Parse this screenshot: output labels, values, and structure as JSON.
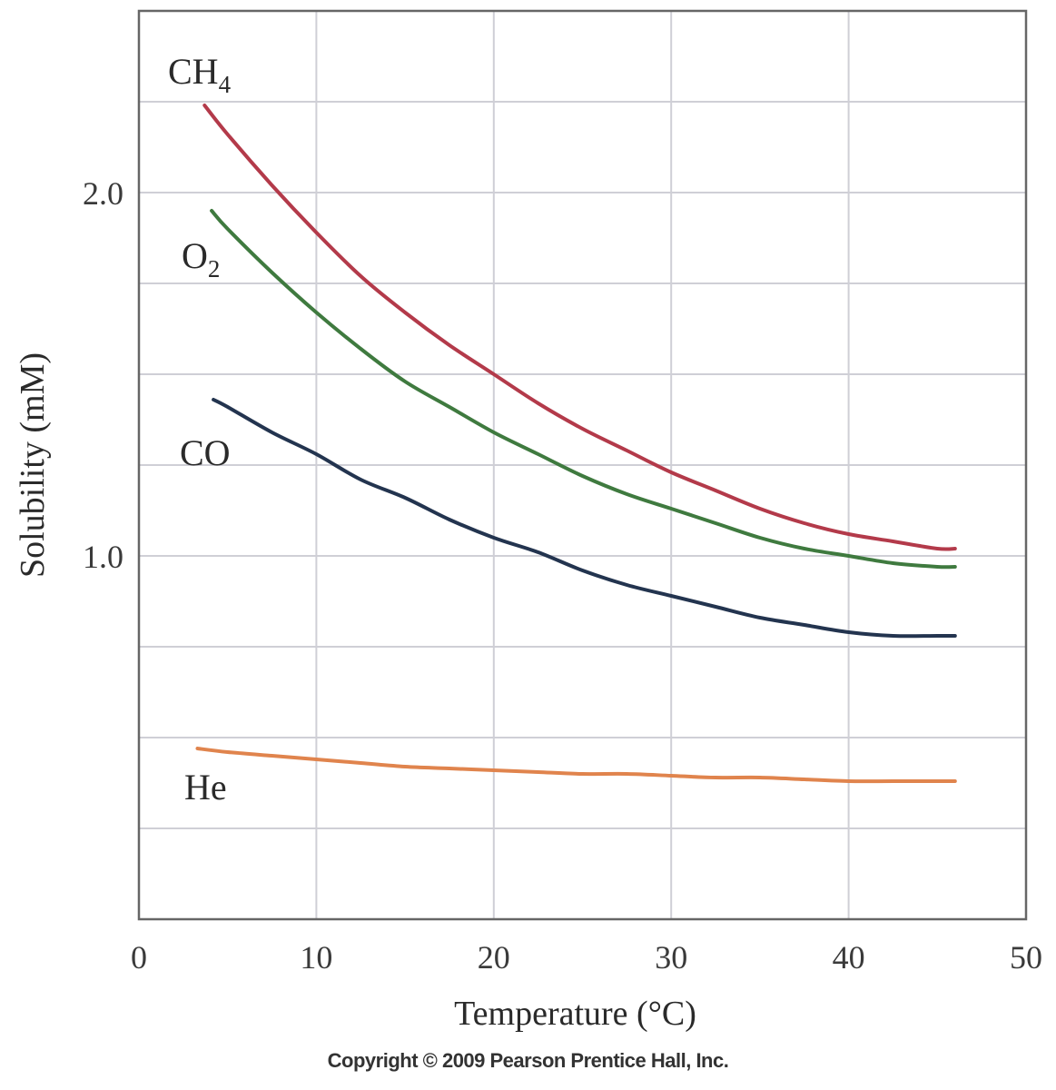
{
  "chart_data": {
    "type": "line",
    "title": "",
    "xlabel": "Temperature (°C)",
    "ylabel": "Solubility (mM)",
    "xlim": [
      0,
      50
    ],
    "ylim": [
      0,
      2.5
    ],
    "x_ticks": [
      0,
      10,
      20,
      30,
      40,
      50
    ],
    "x_tick_labels": [
      "0",
      "10",
      "20",
      "30",
      "40",
      "50"
    ],
    "y_ticks": [
      1.0,
      2.0
    ],
    "y_tick_labels": [
      "1.0",
      "2.0"
    ],
    "grid": true,
    "grid_x_step": 10,
    "grid_y_step": 0.25,
    "series": [
      {
        "name": "CH4",
        "label_base": "CH",
        "label_sub": "4",
        "color": "#b33a4a",
        "x": [
          3.7,
          5,
          7.5,
          10,
          12.5,
          15,
          17.5,
          20,
          22.5,
          25,
          27.5,
          30,
          32.5,
          35,
          37.5,
          40,
          42.5,
          45,
          46
        ],
        "y": [
          2.24,
          2.16,
          2.02,
          1.89,
          1.77,
          1.67,
          1.58,
          1.5,
          1.42,
          1.35,
          1.29,
          1.23,
          1.18,
          1.13,
          1.09,
          1.06,
          1.04,
          1.02,
          1.02
        ]
      },
      {
        "name": "O2",
        "label_base": "O",
        "label_sub": "2",
        "color": "#3f7a3f",
        "x": [
          4.1,
          5,
          7.5,
          10,
          12.5,
          15,
          17.5,
          20,
          22.5,
          25,
          27.5,
          30,
          32.5,
          35,
          37.5,
          40,
          42.5,
          45,
          46
        ],
        "y": [
          1.95,
          1.9,
          1.78,
          1.67,
          1.57,
          1.48,
          1.41,
          1.34,
          1.28,
          1.22,
          1.17,
          1.13,
          1.09,
          1.05,
          1.02,
          1.0,
          0.98,
          0.97,
          0.97
        ]
      },
      {
        "name": "CO",
        "label_base": "CO",
        "label_sub": "",
        "color": "#23344f",
        "x": [
          4.2,
          5,
          7.5,
          10,
          12.5,
          15,
          17.5,
          20,
          22.5,
          25,
          27.5,
          30,
          32.5,
          35,
          37.5,
          40,
          42.5,
          45,
          46
        ],
        "y": [
          1.43,
          1.41,
          1.34,
          1.28,
          1.21,
          1.16,
          1.1,
          1.05,
          1.01,
          0.96,
          0.92,
          0.89,
          0.86,
          0.83,
          0.81,
          0.79,
          0.78,
          0.78,
          0.78
        ]
      },
      {
        "name": "He",
        "label_base": "He",
        "label_sub": "",
        "color": "#e0844d",
        "x": [
          3.3,
          5,
          7.5,
          10,
          12.5,
          15,
          17.5,
          20,
          22.5,
          25,
          27.5,
          30,
          32.5,
          35,
          37.5,
          40,
          42.5,
          45,
          46
        ],
        "y": [
          0.47,
          0.46,
          0.45,
          0.44,
          0.43,
          0.42,
          0.415,
          0.41,
          0.405,
          0.4,
          0.4,
          0.395,
          0.39,
          0.39,
          0.385,
          0.38,
          0.38,
          0.38,
          0.38
        ]
      }
    ]
  },
  "copyright": "Copyright © 2009 Pearson Prentice Hall, Inc."
}
